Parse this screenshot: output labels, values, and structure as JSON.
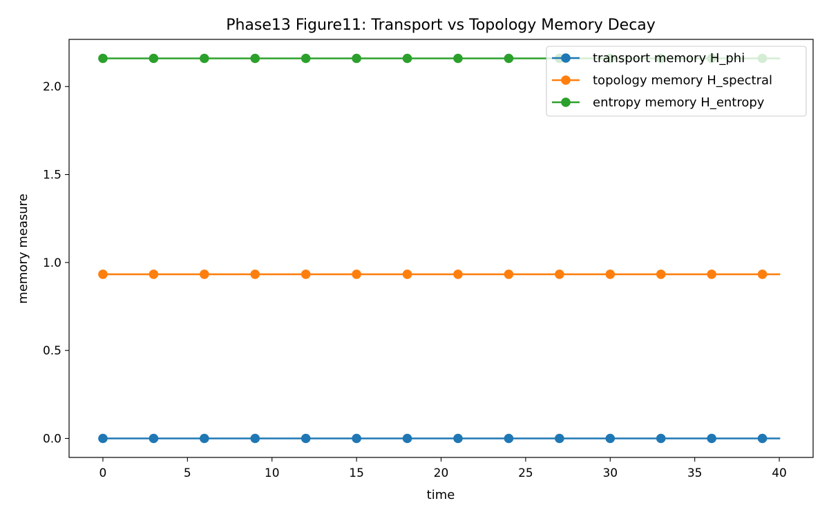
{
  "chart_data": {
    "type": "line",
    "title": "Phase13 Figure11: Transport vs Topology Memory Decay",
    "xlabel": "time",
    "ylabel": "memory measure",
    "xlim": [
      -2,
      42
    ],
    "ylim": [
      -0.108,
      2.268
    ],
    "xticks": [
      0,
      5,
      10,
      15,
      20,
      25,
      30,
      35,
      40
    ],
    "xtick_labels": [
      "0",
      "5",
      "10",
      "15",
      "20",
      "25",
      "30",
      "35",
      "40"
    ],
    "yticks": [
      0.0,
      0.5,
      1.0,
      1.5,
      2.0
    ],
    "ytick_labels": [
      "0.0",
      "0.5",
      "1.0",
      "1.5",
      "2.0"
    ],
    "grid": false,
    "legend_position": "top-right",
    "x": [
      0,
      1,
      2,
      3,
      4,
      5,
      6,
      7,
      8,
      9,
      10,
      11,
      12,
      13,
      14,
      15,
      16,
      17,
      18,
      19,
      20,
      21,
      22,
      23,
      24,
      25,
      26,
      27,
      28,
      29,
      30,
      31,
      32,
      33,
      34,
      35,
      36,
      37,
      38,
      39,
      40
    ],
    "marker_every": 3,
    "series": [
      {
        "name": "transport memory H_phi",
        "color": "#1f77b4",
        "constant_value": 0.0
      },
      {
        "name": "topology memory H_spectral",
        "color": "#ff7f0e",
        "constant_value": 0.933
      },
      {
        "name": "entropy memory H_entropy",
        "color": "#2ca02c",
        "constant_value": 2.16
      }
    ]
  }
}
